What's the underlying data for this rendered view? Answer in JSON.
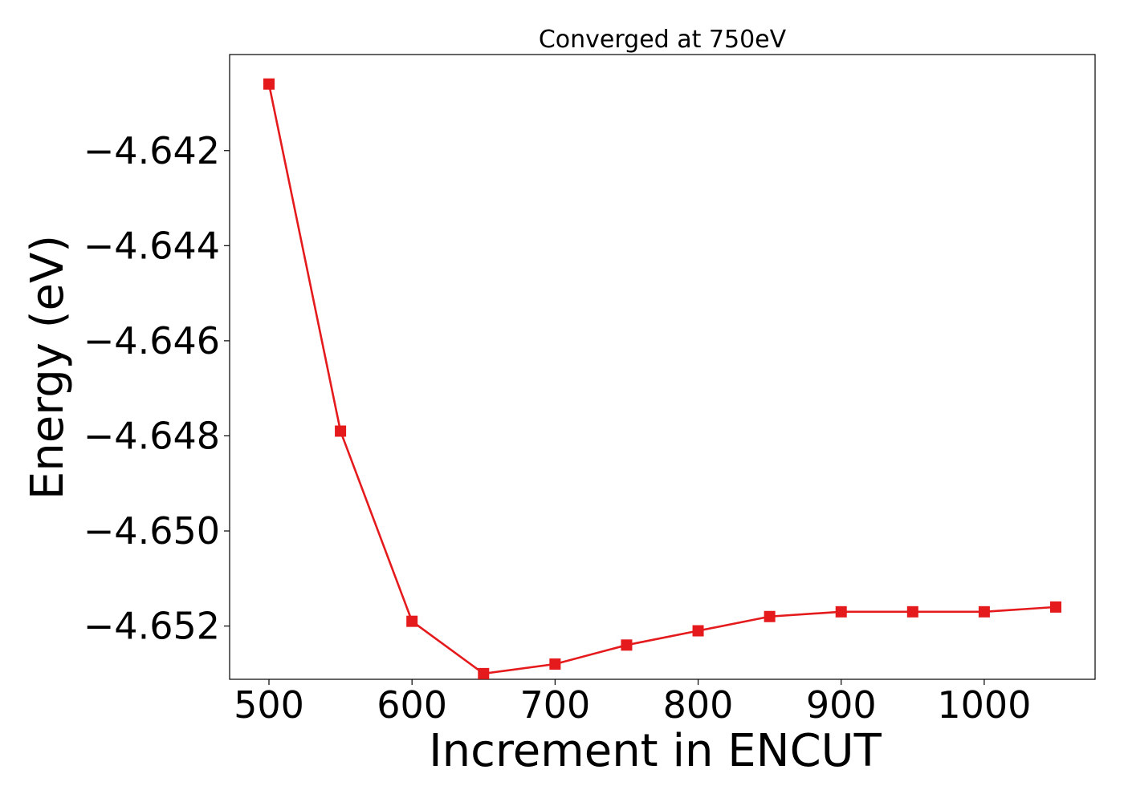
{
  "chart_data": {
    "type": "line",
    "title": "Converged at 750eV",
    "xlabel": "Increment in ENCUT",
    "ylabel": "Energy (eV)",
    "x": [
      500,
      550,
      600,
      650,
      700,
      750,
      800,
      850,
      900,
      950,
      1000,
      1050
    ],
    "series": [
      {
        "values": [
          -4.6406,
          -4.6479,
          -4.6519,
          -4.653,
          -4.6528,
          -4.6524,
          -4.6521,
          -4.6518,
          -4.6517,
          -4.6517,
          -4.6517,
          -4.6516
        ],
        "color": "#e41a1c",
        "marker": "square"
      }
    ],
    "xticks": [
      500,
      600,
      700,
      800,
      900,
      1000
    ],
    "xtick_labels": [
      "500",
      "600",
      "700",
      "800",
      "900",
      "1000"
    ],
    "yticks": [
      -4.652,
      -4.65,
      -4.648,
      -4.646,
      -4.644,
      -4.642
    ],
    "ytick_labels": [
      "−4.652",
      "−4.650",
      "−4.648",
      "−4.646",
      "−4.644",
      "−4.642"
    ],
    "xlim": [
      472.5,
      1077.5
    ],
    "ylim": [
      -4.65312,
      -4.63998
    ],
    "grid": false,
    "legend": "none"
  }
}
